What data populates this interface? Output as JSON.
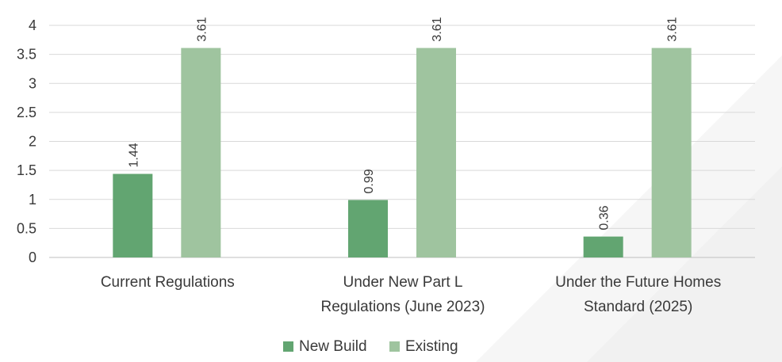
{
  "chart_data": {
    "type": "bar",
    "title": "",
    "xlabel": "",
    "ylabel": "",
    "ylim": [
      0,
      4
    ],
    "yticks": [
      "0",
      "0.5",
      "1",
      "1.5",
      "2",
      "2.5",
      "3",
      "3.5",
      "4"
    ],
    "grid": true,
    "legend_position": "bottom",
    "categories": [
      [
        "Current Regulations"
      ],
      [
        "Under New Part L",
        "Regulations (June 2023)"
      ],
      [
        "Under the Future Homes",
        "Standard (2025)"
      ]
    ],
    "series": [
      {
        "name": "New Build",
        "color": "#62a571",
        "values": [
          1.44,
          0.99,
          0.36
        ],
        "labels": [
          "1.44",
          "0.99",
          "0.36"
        ]
      },
      {
        "name": "Existing",
        "color": "#9fc49f",
        "values": [
          3.61,
          3.61,
          3.61
        ],
        "labels": [
          "3.61",
          "3.61",
          "3.61"
        ]
      }
    ]
  }
}
